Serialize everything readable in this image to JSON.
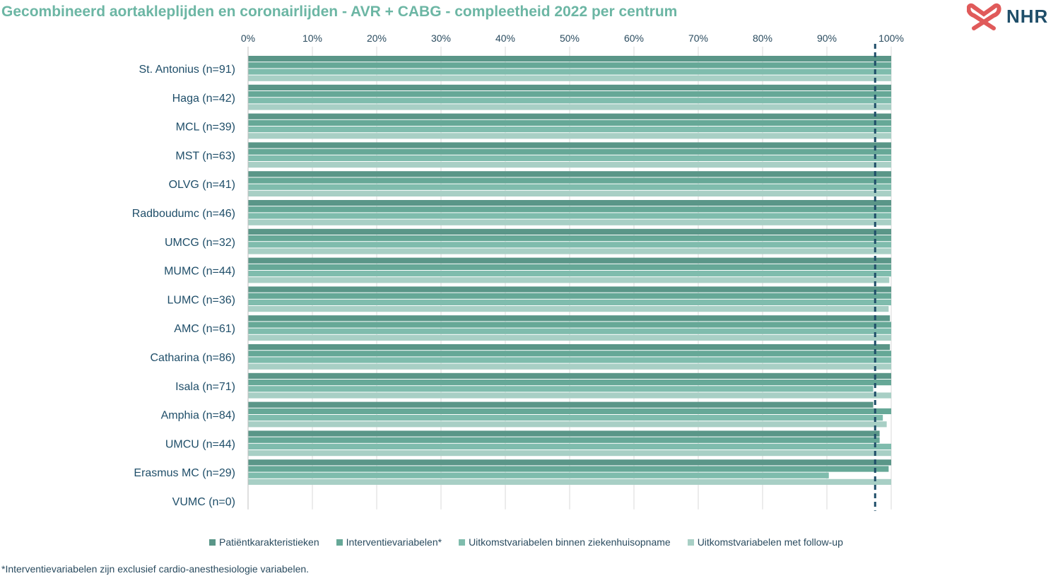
{
  "title": "Gecombineerd aortakleplijden en coronairlijden - AVR + CABG - compleetheid 2022 per centrum",
  "logo": {
    "text": "NHR",
    "icon": "nhr-heart-logo-icon",
    "color": "#e05a5a"
  },
  "footnote": "*Interventievariabelen zijn exclusief cardio-anesthesiologie variabelen.",
  "chart_data": {
    "type": "bar",
    "orientation": "horizontal",
    "title": "Gecombineerd aortakleplijden en coronairlijden - AVR + CABG - compleetheid 2022 per centrum",
    "x_ticks": [
      "0%",
      "10%",
      "20%",
      "30%",
      "40%",
      "50%",
      "60%",
      "70%",
      "80%",
      "90%",
      "100%"
    ],
    "xlim": [
      0,
      100
    ],
    "x_axis_position": "top",
    "grid": true,
    "reference_line": {
      "value": 97.5,
      "style": "dashed",
      "color": "#1f4e69"
    },
    "legend_position": "bottom",
    "categories": [
      "St. Antonius (n=91)",
      "Haga (n=42)",
      "MCL (n=39)",
      "MST (n=63)",
      "OLVG (n=41)",
      "Radboudumc (n=46)",
      "UMCG (n=32)",
      "MUMC (n=44)",
      "LUMC (n=36)",
      "AMC (n=61)",
      "Catharina (n=86)",
      "Isala (n=71)",
      "Amphia (n=84)",
      "UMCU (n=44)",
      "Erasmus MC (n=29)",
      "VUMC (n=0)"
    ],
    "series": [
      {
        "name": "Patiëntkarakteristieken",
        "color": "#5a9688",
        "values": [
          100,
          100,
          100,
          100,
          100,
          100,
          100,
          100,
          100,
          99.8,
          99.8,
          100,
          97.2,
          98.2,
          100,
          null
        ]
      },
      {
        "name": "Interventievariabelen*",
        "color": "#66a897",
        "values": [
          100,
          100,
          100,
          100,
          100,
          100,
          100,
          100,
          100,
          100,
          100,
          100,
          100,
          98.2,
          99.6,
          null
        ]
      },
      {
        "name": "Uitkomstvariabelen binnen ziekenhuisopname",
        "color": "#7fbcad",
        "values": [
          100,
          100,
          100,
          100,
          100,
          100,
          100,
          100,
          100,
          100,
          100,
          97.2,
          98.7,
          100,
          90.3,
          null
        ]
      },
      {
        "name": "Uitkomstvariabelen met follow-up",
        "color": "#a8cfc5",
        "values": [
          100,
          100,
          100,
          100,
          100,
          100,
          100,
          99.7,
          99.6,
          100,
          100,
          100,
          99.3,
          100,
          100,
          null
        ]
      }
    ]
  }
}
